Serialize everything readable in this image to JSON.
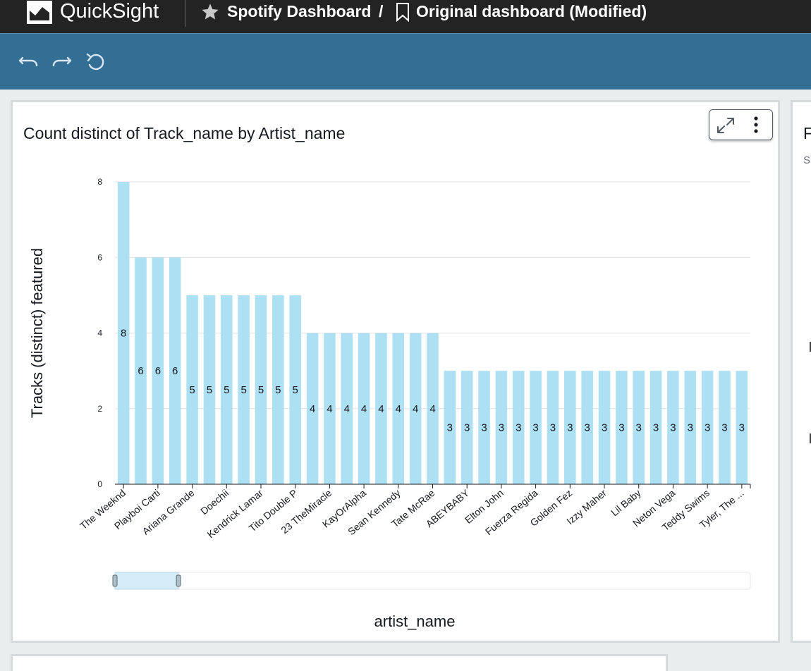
{
  "topbar": {
    "app_name": "QuickSight",
    "analysis_name": "Spotify Dashboard",
    "separator": "/",
    "dashboard_name": "Original dashboard (Modified)"
  },
  "toolbar": {
    "icons": [
      "undo-icon",
      "redo-icon",
      "reset-icon"
    ]
  },
  "visual": {
    "title": "Count distinct of Track_name by Artist_name"
  },
  "right_visual": {
    "title_fragment": "F",
    "subtitle_fragment": "Sh"
  },
  "colors": {
    "topbar_bg": "#232323",
    "toolbar_bg": "#336e94",
    "bar": "#ade0f2",
    "grid": "#e0e0e0",
    "scroll_thumb": "#d5ebf7"
  },
  "chart_data": {
    "type": "bar",
    "title": "Count distinct of Track_name by Artist_name",
    "xlabel": "artist_name",
    "ylabel": "Tracks (distinct) featured",
    "ylim": [
      0,
      8
    ],
    "yticks": [
      0,
      2,
      4,
      6,
      8
    ],
    "grid": true,
    "categories": [
      "The Weeknd",
      "",
      "Playboi Carti",
      "",
      "Ariana Grande",
      "",
      "Doechii",
      "",
      "Kendrick Lamar",
      "",
      "Tito Double P",
      "",
      "23 TheMiracle",
      "",
      "KayOrAlpha",
      "",
      "Sean Kennedy",
      "",
      "Tate McRae",
      "",
      "ABEYBABY",
      "",
      "Elton John",
      "",
      "Fuerza Regida",
      "",
      "Golden Fez",
      "",
      "Izzy Maher",
      "",
      "Lil Baby",
      "",
      "Neton Vega",
      "",
      "Teddy Swims",
      "",
      "Tyler, The ..."
    ],
    "values": [
      8,
      6,
      6,
      6,
      5,
      5,
      5,
      5,
      5,
      5,
      5,
      4,
      4,
      4,
      4,
      4,
      4,
      4,
      4,
      3,
      3,
      3,
      3,
      3,
      3,
      3,
      3,
      3,
      3,
      3,
      3,
      3,
      3,
      3,
      3,
      3,
      3
    ],
    "data_labels": true,
    "scrollbar": {
      "start": 0,
      "end": 0.1
    }
  }
}
